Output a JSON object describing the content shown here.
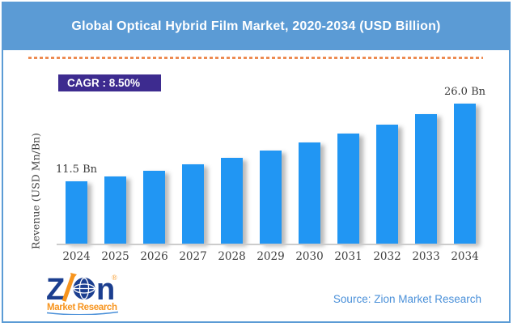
{
  "header": {
    "title": "Global Optical Hybrid Film Market, 2020-2034 (USD Billion)",
    "bg": "#5B9BD5",
    "text_color": "#FFFFFF"
  },
  "cagr_badge": {
    "label": "CAGR : 8.50%",
    "bg": "#3D2B8F",
    "text_color": "#FFFFFF"
  },
  "chart_data": {
    "type": "bar",
    "title": "Global Optical Hybrid Film Market, 2020-2034 (USD Billion)",
    "categories": [
      "2024",
      "2025",
      "2026",
      "2027",
      "2028",
      "2029",
      "2030",
      "2031",
      "2032",
      "2033",
      "2034"
    ],
    "values": [
      11.5,
      12.5,
      13.5,
      14.7,
      15.9,
      17.3,
      18.8,
      20.4,
      22.1,
      24.0,
      26.0
    ],
    "point_labels": [
      "11.5 Bn",
      "",
      "",
      "",
      "",
      "",
      "",
      "",
      "",
      "",
      "26.0 Bn"
    ],
    "unit": "USD Billion",
    "cagr": "8.50%",
    "ylabel": "Revenue (USD Mn/Bn)",
    "xlabel": "",
    "ylim": [
      0,
      26
    ],
    "grid": false,
    "legend": false,
    "bar_color": "#2196F3",
    "axis_color": "#CCCCCC",
    "divider_color": "#ED8B52"
  },
  "footer": {
    "source_label": "Source: Zion Market Research",
    "source_color": "#4A90D9",
    "logo": {
      "brand": "Zion",
      "brand_z": "Z",
      "brand_n": "n",
      "registered": "®",
      "tagline": "Market Research",
      "navy": "#1B3E8F",
      "orange": "#F7941D"
    }
  }
}
